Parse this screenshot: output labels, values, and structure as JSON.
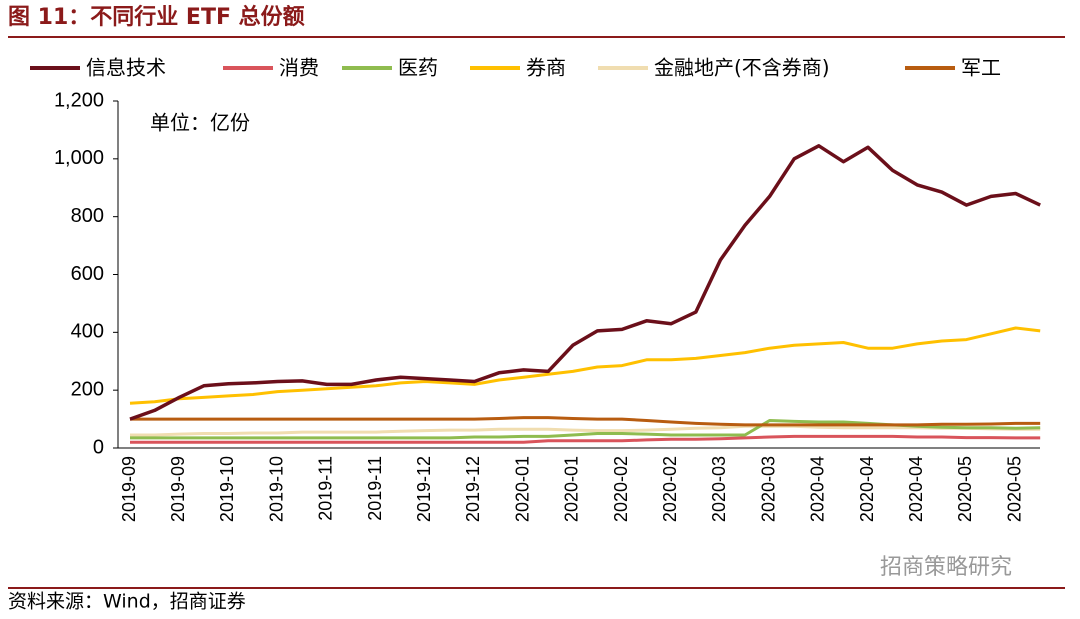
{
  "chart_data": {
    "type": "line",
    "title": "图 11：不同行业 ETF 总份额",
    "annotation": "单位：亿份",
    "source": "资料来源：Wind，招商证券",
    "watermark": "招商策略研究",
    "categories": [
      "2019-09",
      null,
      "2019-09",
      null,
      "2019-10",
      null,
      "2019-10",
      null,
      "2019-11",
      null,
      "2019-11",
      null,
      "2019-12",
      null,
      "2019-12",
      null,
      "2020-01",
      null,
      "2020-01",
      null,
      "2020-02",
      null,
      "2020-02",
      null,
      "2020-03",
      null,
      "2020-03",
      null,
      "2020-04",
      null,
      "2020-04",
      null,
      "2020-04",
      null,
      "2020-05",
      null,
      "2020-05",
      null
    ],
    "series": [
      {
        "name": "信息技术",
        "color": "#6b0f1a",
        "values": [
          100,
          130,
          175,
          215,
          222,
          225,
          230,
          232,
          220,
          220,
          235,
          245,
          240,
          235,
          230,
          260,
          270,
          265,
          355,
          405,
          410,
          440,
          430,
          470,
          650,
          770,
          870,
          1000,
          1045,
          990,
          1040,
          960,
          910,
          885,
          840,
          870,
          880,
          840
        ]
      },
      {
        "name": "消费",
        "color": "#d9545b",
        "values": [
          20,
          20,
          20,
          20,
          20,
          20,
          20,
          20,
          20,
          20,
          20,
          20,
          20,
          20,
          20,
          20,
          20,
          25,
          25,
          25,
          25,
          28,
          30,
          30,
          32,
          35,
          38,
          40,
          40,
          40,
          40,
          40,
          38,
          38,
          36,
          36,
          35,
          35
        ]
      },
      {
        "name": "医药",
        "color": "#8fbc4f",
        "values": [
          35,
          35,
          35,
          35,
          35,
          35,
          35,
          35,
          35,
          35,
          35,
          35,
          35,
          35,
          38,
          38,
          40,
          40,
          45,
          50,
          50,
          48,
          45,
          45,
          45,
          45,
          95,
          92,
          90,
          90,
          85,
          80,
          75,
          72,
          70,
          70,
          68,
          70
        ]
      },
      {
        "name": "券商",
        "color": "#ffc000",
        "values": [
          155,
          160,
          170,
          175,
          180,
          185,
          195,
          200,
          205,
          210,
          215,
          225,
          230,
          225,
          220,
          235,
          245,
          255,
          265,
          280,
          285,
          305,
          305,
          310,
          320,
          330,
          345,
          355,
          360,
          365,
          345,
          345,
          360,
          370,
          375,
          395,
          415,
          405
        ]
      },
      {
        "name": "金融地产(不含券商)",
        "color": "#f0ddb0",
        "values": [
          45,
          45,
          48,
          50,
          50,
          52,
          52,
          55,
          55,
          55,
          55,
          58,
          60,
          62,
          62,
          65,
          65,
          65,
          62,
          60,
          60,
          62,
          65,
          68,
          70,
          75,
          75,
          75,
          72,
          70,
          70,
          70,
          70,
          68,
          68,
          66,
          65,
          65
        ]
      },
      {
        "name": "军工",
        "color": "#b85c10",
        "values": [
          100,
          100,
          100,
          100,
          100,
          100,
          100,
          100,
          100,
          100,
          100,
          100,
          100,
          100,
          100,
          102,
          105,
          105,
          102,
          100,
          100,
          95,
          90,
          85,
          82,
          80,
          80,
          80,
          80,
          80,
          80,
          80,
          80,
          82,
          82,
          83,
          85,
          85
        ]
      }
    ],
    "ylim": [
      0,
      1200
    ],
    "yticks": [
      0,
      200,
      400,
      600,
      800,
      {
        "value": 1000,
        "label": "1,000"
      },
      {
        "value": 1200,
        "label": "1,200"
      }
    ],
    "grid": false
  }
}
